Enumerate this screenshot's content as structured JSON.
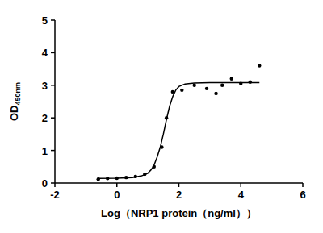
{
  "chart_data": {
    "type": "scatter",
    "x_label": "Log（NRP1 protein（ng/ml））",
    "y_label": "OD450nm",
    "xlim": [
      -2,
      6
    ],
    "xticks": [
      -2,
      0,
      2,
      4,
      6
    ],
    "ylim": [
      0,
      5
    ],
    "yticks": [
      0,
      1,
      2,
      3,
      4,
      5
    ],
    "grid": false,
    "series": [
      {
        "type": "scatter",
        "marker": "circle",
        "color": "#000000",
        "x": [
          -0.6,
          -0.3,
          0.0,
          0.3,
          0.6,
          0.9,
          1.2,
          1.45,
          1.6,
          1.8,
          2.1,
          2.5,
          2.9,
          3.2,
          3.4,
          3.7,
          4.0,
          4.3,
          4.6
        ],
        "values": [
          0.12,
          0.14,
          0.15,
          0.17,
          0.2,
          0.27,
          0.5,
          1.1,
          2.0,
          2.8,
          2.85,
          3.0,
          2.9,
          2.75,
          3.0,
          3.2,
          3.05,
          3.1,
          3.6
        ]
      },
      {
        "type": "line",
        "line_style": "solid",
        "color": "#000000",
        "x": [
          -0.6,
          0.0,
          0.5,
          0.8,
          1.0,
          1.1,
          1.2,
          1.3,
          1.4,
          1.5,
          1.6,
          1.7,
          1.8,
          1.9,
          2.0,
          2.2,
          2.5,
          3.0,
          4.6
        ],
        "values": [
          0.14,
          0.15,
          0.17,
          0.22,
          0.3,
          0.4,
          0.55,
          0.8,
          1.1,
          1.5,
          1.95,
          2.35,
          2.65,
          2.85,
          2.96,
          3.04,
          3.07,
          3.08,
          3.08
        ]
      }
    ]
  }
}
